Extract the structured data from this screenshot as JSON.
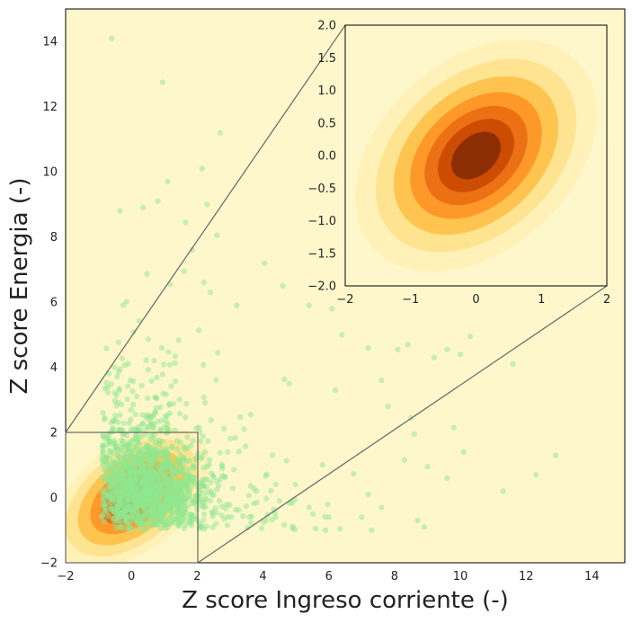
{
  "chart_data": [
    {
      "type": "scatter",
      "title": "",
      "xlabel": "Z score Ingreso corriente (-)",
      "ylabel": "Z score Energia (-)",
      "xlim": [
        -2,
        15
      ],
      "ylim": [
        -2,
        15
      ],
      "xticks": [
        -2,
        0,
        2,
        4,
        6,
        8,
        10,
        12,
        14
      ],
      "yticks": [
        -2,
        0,
        2,
        4,
        6,
        8,
        10,
        12,
        14
      ],
      "grid": false,
      "background": "#fff7cc",
      "point_color": "#90e88f",
      "density_colors": [
        "#fff1b8",
        "#fee391",
        "#fec44f",
        "#fe9929",
        "#ec7014",
        "#cc4c02",
        "#8c2d04"
      ],
      "density_center": [
        0,
        0
      ],
      "inset_region": {
        "x": [
          -2,
          2
        ],
        "y": [
          -2,
          2
        ]
      },
      "outlier_points": [
        [
          -0.6,
          14.1
        ],
        [
          0.95,
          12.75
        ],
        [
          2.7,
          11.2
        ],
        [
          2.15,
          10.1
        ],
        [
          1.1,
          9.7
        ],
        [
          0.8,
          9.1
        ],
        [
          -0.35,
          8.8
        ],
        [
          0.35,
          8.9
        ],
        [
          2.3,
          9.0
        ],
        [
          1.65,
          8.45
        ],
        [
          2.6,
          8.05
        ],
        [
          1.85,
          7.6
        ],
        [
          4.05,
          7.2
        ],
        [
          1.6,
          6.95
        ],
        [
          2.2,
          6.6
        ],
        [
          4.6,
          6.5
        ],
        [
          2.4,
          6.3
        ],
        [
          3.2,
          5.9
        ],
        [
          5.4,
          5.9
        ],
        [
          6.1,
          5.8
        ],
        [
          6.4,
          5.0
        ],
        [
          7.2,
          4.6
        ],
        [
          8.1,
          4.55
        ],
        [
          8.4,
          4.7
        ],
        [
          9.2,
          4.3
        ],
        [
          9.6,
          4.55
        ],
        [
          10.3,
          4.95
        ],
        [
          10.0,
          4.4
        ],
        [
          11.6,
          4.1
        ],
        [
          7.6,
          3.6
        ],
        [
          6.2,
          3.3
        ],
        [
          4.8,
          3.5
        ],
        [
          7.8,
          2.8
        ],
        [
          8.5,
          2.45
        ],
        [
          9.8,
          2.15
        ],
        [
          8.6,
          1.95
        ],
        [
          8.3,
          1.15
        ],
        [
          9.0,
          0.95
        ],
        [
          10.1,
          1.4
        ],
        [
          12.3,
          0.7
        ],
        [
          12.9,
          1.3
        ],
        [
          9.6,
          0.6
        ],
        [
          7.2,
          0.1
        ],
        [
          7.6,
          -0.3
        ],
        [
          7.0,
          -0.6
        ],
        [
          8.7,
          -0.7
        ],
        [
          8.9,
          -0.9
        ],
        [
          7.3,
          -1.0
        ],
        [
          11.3,
          0.2
        ],
        [
          6.0,
          -0.6
        ],
        [
          5.4,
          -0.3
        ],
        [
          4.1,
          -0.7
        ],
        [
          5.6,
          -0.95
        ],
        [
          5.9,
          -1.0
        ],
        [
          3.8,
          0.2
        ]
      ]
    },
    {
      "type": "area",
      "title": "",
      "xlim": [
        -2,
        2
      ],
      "ylim": [
        -2,
        2
      ],
      "xticks": [
        -2,
        -1,
        0,
        1,
        2
      ],
      "xtick_labels": [
        "−2",
        "−1",
        "0",
        "1",
        "2"
      ],
      "yticks": [
        -2,
        -1.5,
        -1,
        -0.5,
        0,
        0.5,
        1,
        1.5,
        2
      ],
      "ytick_labels": [
        "−2.0",
        "−1.5",
        "−1.0",
        "−0.5",
        "0.0",
        "0.5",
        "1.0",
        "1.5",
        "2.0"
      ],
      "density_center": [
        0,
        0
      ],
      "correlation": 0.45,
      "density_colors": [
        "#fff1b8",
        "#fee391",
        "#fec44f",
        "#fe9929",
        "#ec7014",
        "#cc4c02",
        "#8c2d04"
      ]
    }
  ]
}
